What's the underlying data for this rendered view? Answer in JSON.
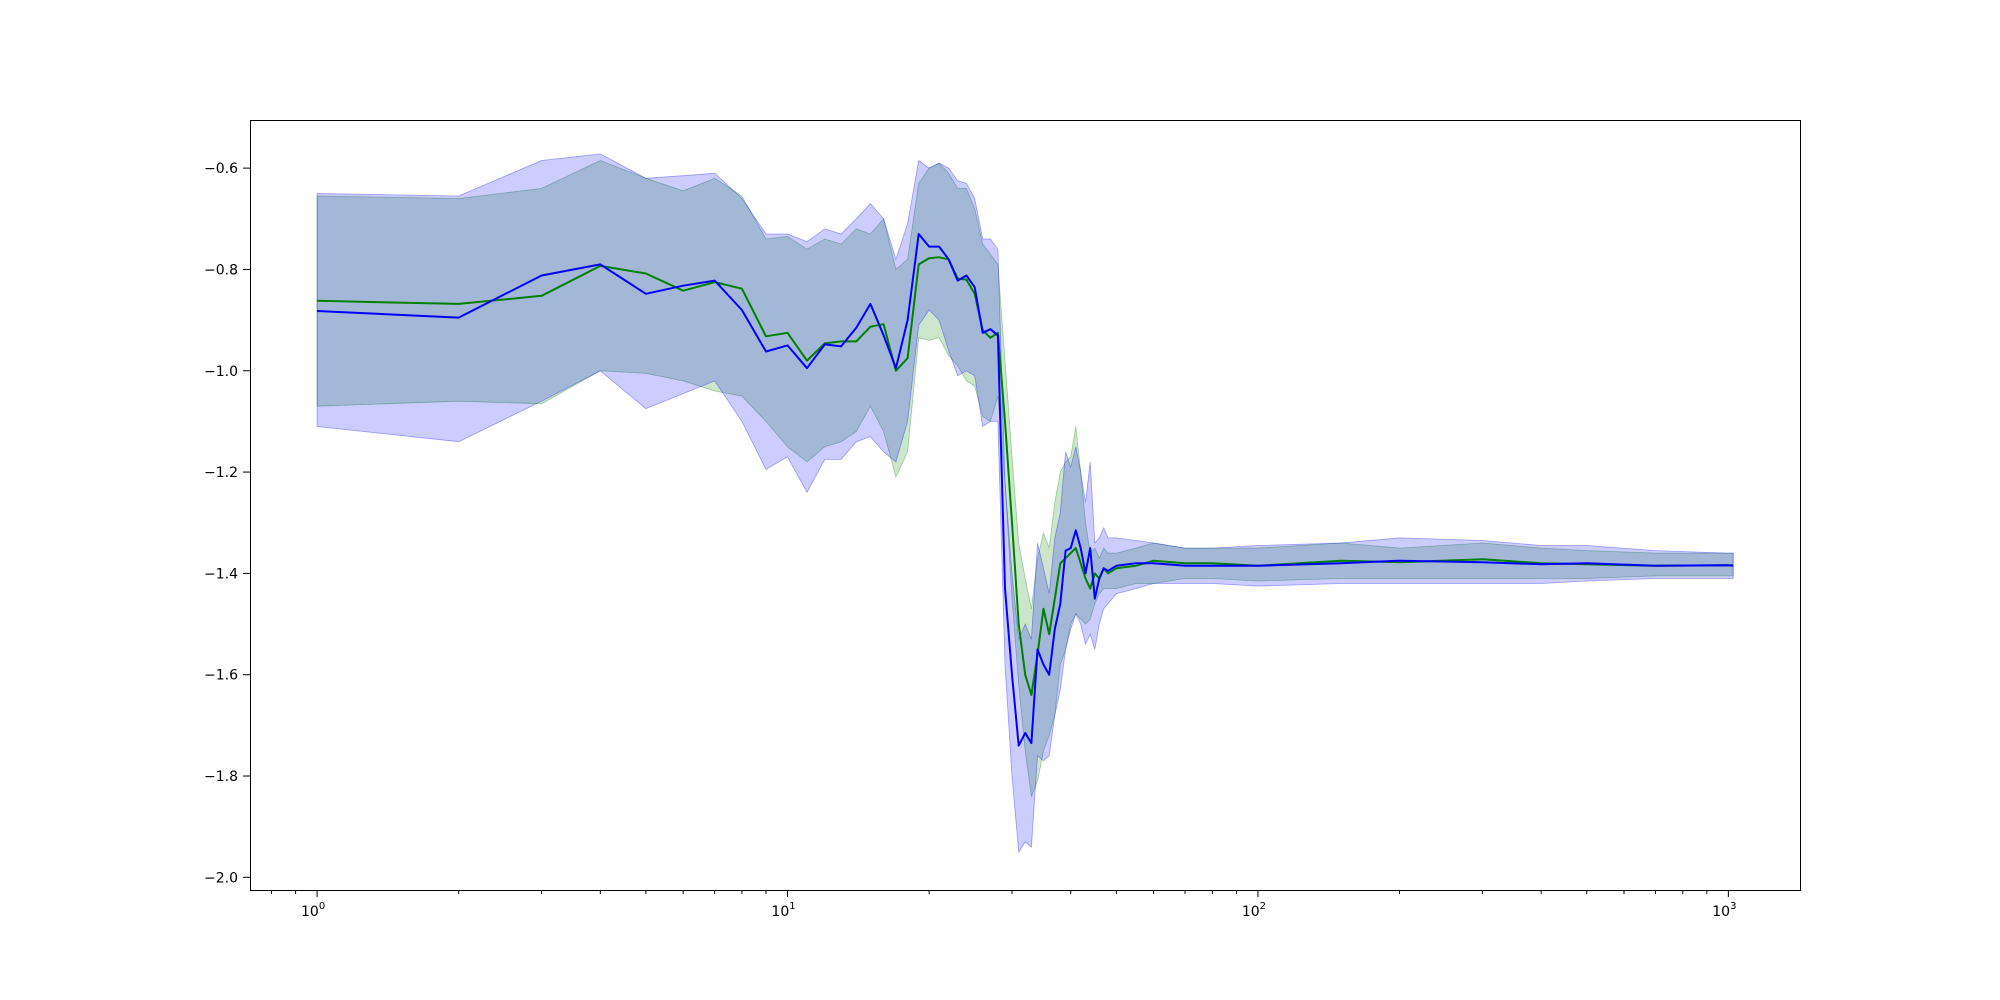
{
  "chart_data": {
    "type": "line",
    "xscale": "log",
    "yscale": "linear",
    "xlim": [
      0.72,
      1420
    ],
    "ylim": [
      -2.025,
      -0.505
    ],
    "grid": false,
    "legend": "none",
    "title": "",
    "xlabel": "",
    "ylabel": "",
    "x_ticks": [
      {
        "value": 1,
        "base": "10",
        "exp": "0"
      },
      {
        "value": 10,
        "base": "10",
        "exp": "1"
      },
      {
        "value": 100,
        "base": "10",
        "exp": "2"
      },
      {
        "value": 1000,
        "base": "10",
        "exp": "3"
      }
    ],
    "y_ticks": [
      {
        "value": -0.6,
        "label": "−0.6"
      },
      {
        "value": -0.8,
        "label": "−0.8"
      },
      {
        "value": -1.0,
        "label": "−1.0"
      },
      {
        "value": -1.2,
        "label": "−1.2"
      },
      {
        "value": -1.4,
        "label": "−1.4"
      },
      {
        "value": -1.6,
        "label": "−1.6"
      },
      {
        "value": -1.8,
        "label": "−1.8"
      },
      {
        "value": -2.0,
        "label": "−2.0"
      }
    ],
    "series": [
      {
        "color": "#008000",
        "band_color": "#008000",
        "band_opacity": 0.2,
        "x": [
          1,
          2,
          3,
          4,
          5,
          6,
          7,
          8,
          9,
          10,
          11,
          12,
          13,
          14,
          15,
          16,
          17,
          18,
          19,
          20,
          21,
          22,
          23,
          24,
          25,
          26,
          27,
          28,
          29,
          30,
          31,
          32,
          33,
          34,
          35,
          36,
          37,
          38,
          39,
          40,
          41,
          42,
          43,
          44,
          45,
          46,
          47,
          48,
          50,
          55,
          60,
          70,
          80,
          100,
          150,
          200,
          300,
          400,
          500,
          700,
          1000,
          1024
        ],
        "y": [
          -0.862,
          -0.868,
          -0.852,
          -0.793,
          -0.808,
          -0.842,
          -0.825,
          -0.838,
          -0.932,
          -0.925,
          -0.98,
          -0.946,
          -0.942,
          -0.942,
          -0.913,
          -0.908,
          -1.0,
          -0.975,
          -0.79,
          -0.778,
          -0.776,
          -0.78,
          -0.818,
          -0.82,
          -0.848,
          -0.92,
          -0.935,
          -0.925,
          -1.1,
          -1.3,
          -1.5,
          -1.6,
          -1.64,
          -1.56,
          -1.47,
          -1.52,
          -1.45,
          -1.38,
          -1.37,
          -1.36,
          -1.35,
          -1.38,
          -1.41,
          -1.43,
          -1.4,
          -1.41,
          -1.39,
          -1.4,
          -1.39,
          -1.385,
          -1.375,
          -1.38,
          -1.38,
          -1.385,
          -1.375,
          -1.378,
          -1.372,
          -1.38,
          -1.382,
          -1.385,
          -1.384,
          -1.384
        ],
        "lower": [
          -1.07,
          -1.06,
          -1.065,
          -1.0,
          -1.005,
          -1.02,
          -1.04,
          -1.05,
          -1.1,
          -1.15,
          -1.18,
          -1.15,
          -1.14,
          -1.12,
          -1.07,
          -1.12,
          -1.21,
          -1.16,
          -0.935,
          -0.94,
          -0.935,
          -0.97,
          -0.99,
          -1.02,
          -1.03,
          -1.09,
          -1.1,
          -1.05,
          -1.22,
          -1.45,
          -1.62,
          -1.75,
          -1.84,
          -1.81,
          -1.75,
          -1.72,
          -1.68,
          -1.58,
          -1.55,
          -1.5,
          -1.48,
          -1.49,
          -1.5,
          -1.49,
          -1.46,
          -1.44,
          -1.43,
          -1.43,
          -1.43,
          -1.42,
          -1.42,
          -1.41,
          -1.41,
          -1.415,
          -1.41,
          -1.41,
          -1.41,
          -1.41,
          -1.41,
          -1.405,
          -1.405,
          -1.405
        ],
        "upper": [
          -0.655,
          -0.66,
          -0.64,
          -0.585,
          -0.62,
          -0.645,
          -0.62,
          -0.655,
          -0.74,
          -0.735,
          -0.76,
          -0.74,
          -0.75,
          -0.72,
          -0.73,
          -0.7,
          -0.8,
          -0.78,
          -0.63,
          -0.6,
          -0.59,
          -0.61,
          -0.64,
          -0.64,
          -0.68,
          -0.75,
          -0.77,
          -0.79,
          -0.98,
          -1.17,
          -1.34,
          -1.41,
          -1.47,
          -1.37,
          -1.32,
          -1.35,
          -1.26,
          -1.2,
          -1.18,
          -1.17,
          -1.11,
          -1.2,
          -1.3,
          -1.36,
          -1.35,
          -1.37,
          -1.35,
          -1.36,
          -1.36,
          -1.35,
          -1.34,
          -1.35,
          -1.35,
          -1.35,
          -1.34,
          -1.35,
          -1.34,
          -1.35,
          -1.355,
          -1.36,
          -1.36,
          -1.36
        ]
      },
      {
        "color": "#0000ff",
        "band_color": "#0000ff",
        "band_opacity": 0.2,
        "x": [
          1,
          2,
          3,
          4,
          5,
          6,
          7,
          8,
          9,
          10,
          11,
          12,
          13,
          14,
          15,
          16,
          17,
          18,
          19,
          20,
          21,
          22,
          23,
          24,
          25,
          26,
          27,
          28,
          29,
          30,
          31,
          32,
          33,
          34,
          35,
          36,
          37,
          38,
          39,
          40,
          41,
          42,
          43,
          44,
          45,
          46,
          47,
          48,
          50,
          55,
          60,
          70,
          80,
          100,
          150,
          200,
          300,
          400,
          500,
          700,
          1000,
          1024
        ],
        "y": [
          -0.882,
          -0.895,
          -0.812,
          -0.79,
          -0.848,
          -0.832,
          -0.822,
          -0.88,
          -0.962,
          -0.95,
          -0.995,
          -0.948,
          -0.952,
          -0.915,
          -0.868,
          -0.93,
          -0.995,
          -0.9,
          -0.73,
          -0.755,
          -0.755,
          -0.78,
          -0.822,
          -0.812,
          -0.835,
          -0.925,
          -0.918,
          -0.93,
          -1.43,
          -1.6,
          -1.74,
          -1.715,
          -1.735,
          -1.55,
          -1.58,
          -1.6,
          -1.51,
          -1.46,
          -1.355,
          -1.35,
          -1.315,
          -1.35,
          -1.4,
          -1.35,
          -1.45,
          -1.41,
          -1.39,
          -1.395,
          -1.385,
          -1.38,
          -1.38,
          -1.385,
          -1.385,
          -1.385,
          -1.38,
          -1.375,
          -1.378,
          -1.382,
          -1.38,
          -1.385,
          -1.384,
          -1.385
        ],
        "lower": [
          -1.11,
          -1.14,
          -1.06,
          -1.0,
          -1.075,
          -1.045,
          -1.02,
          -1.1,
          -1.195,
          -1.17,
          -1.24,
          -1.175,
          -1.175,
          -1.14,
          -1.13,
          -1.16,
          -1.18,
          -1.1,
          -0.91,
          -0.88,
          -0.9,
          -0.96,
          -1.01,
          -1.0,
          -1.01,
          -1.11,
          -1.1,
          -1.1,
          -1.58,
          -1.8,
          -1.95,
          -1.93,
          -1.94,
          -1.76,
          -1.77,
          -1.76,
          -1.68,
          -1.63,
          -1.55,
          -1.51,
          -1.48,
          -1.5,
          -1.54,
          -1.52,
          -1.55,
          -1.5,
          -1.47,
          -1.46,
          -1.44,
          -1.43,
          -1.42,
          -1.42,
          -1.42,
          -1.425,
          -1.42,
          -1.42,
          -1.42,
          -1.42,
          -1.415,
          -1.41,
          -1.41,
          -1.41
        ],
        "upper": [
          -0.65,
          -0.655,
          -0.585,
          -0.572,
          -0.62,
          -0.615,
          -0.61,
          -0.66,
          -0.73,
          -0.73,
          -0.745,
          -0.72,
          -0.73,
          -0.7,
          -0.67,
          -0.7,
          -0.78,
          -0.71,
          -0.585,
          -0.6,
          -0.59,
          -0.6,
          -0.625,
          -0.63,
          -0.66,
          -0.74,
          -0.74,
          -0.76,
          -1.22,
          -1.4,
          -1.53,
          -1.5,
          -1.53,
          -1.34,
          -1.39,
          -1.44,
          -1.33,
          -1.28,
          -1.16,
          -1.19,
          -1.15,
          -1.2,
          -1.26,
          -1.18,
          -1.34,
          -1.33,
          -1.31,
          -1.33,
          -1.33,
          -1.335,
          -1.34,
          -1.35,
          -1.35,
          -1.345,
          -1.34,
          -1.33,
          -1.335,
          -1.345,
          -1.345,
          -1.355,
          -1.36,
          -1.36
        ]
      }
    ]
  }
}
